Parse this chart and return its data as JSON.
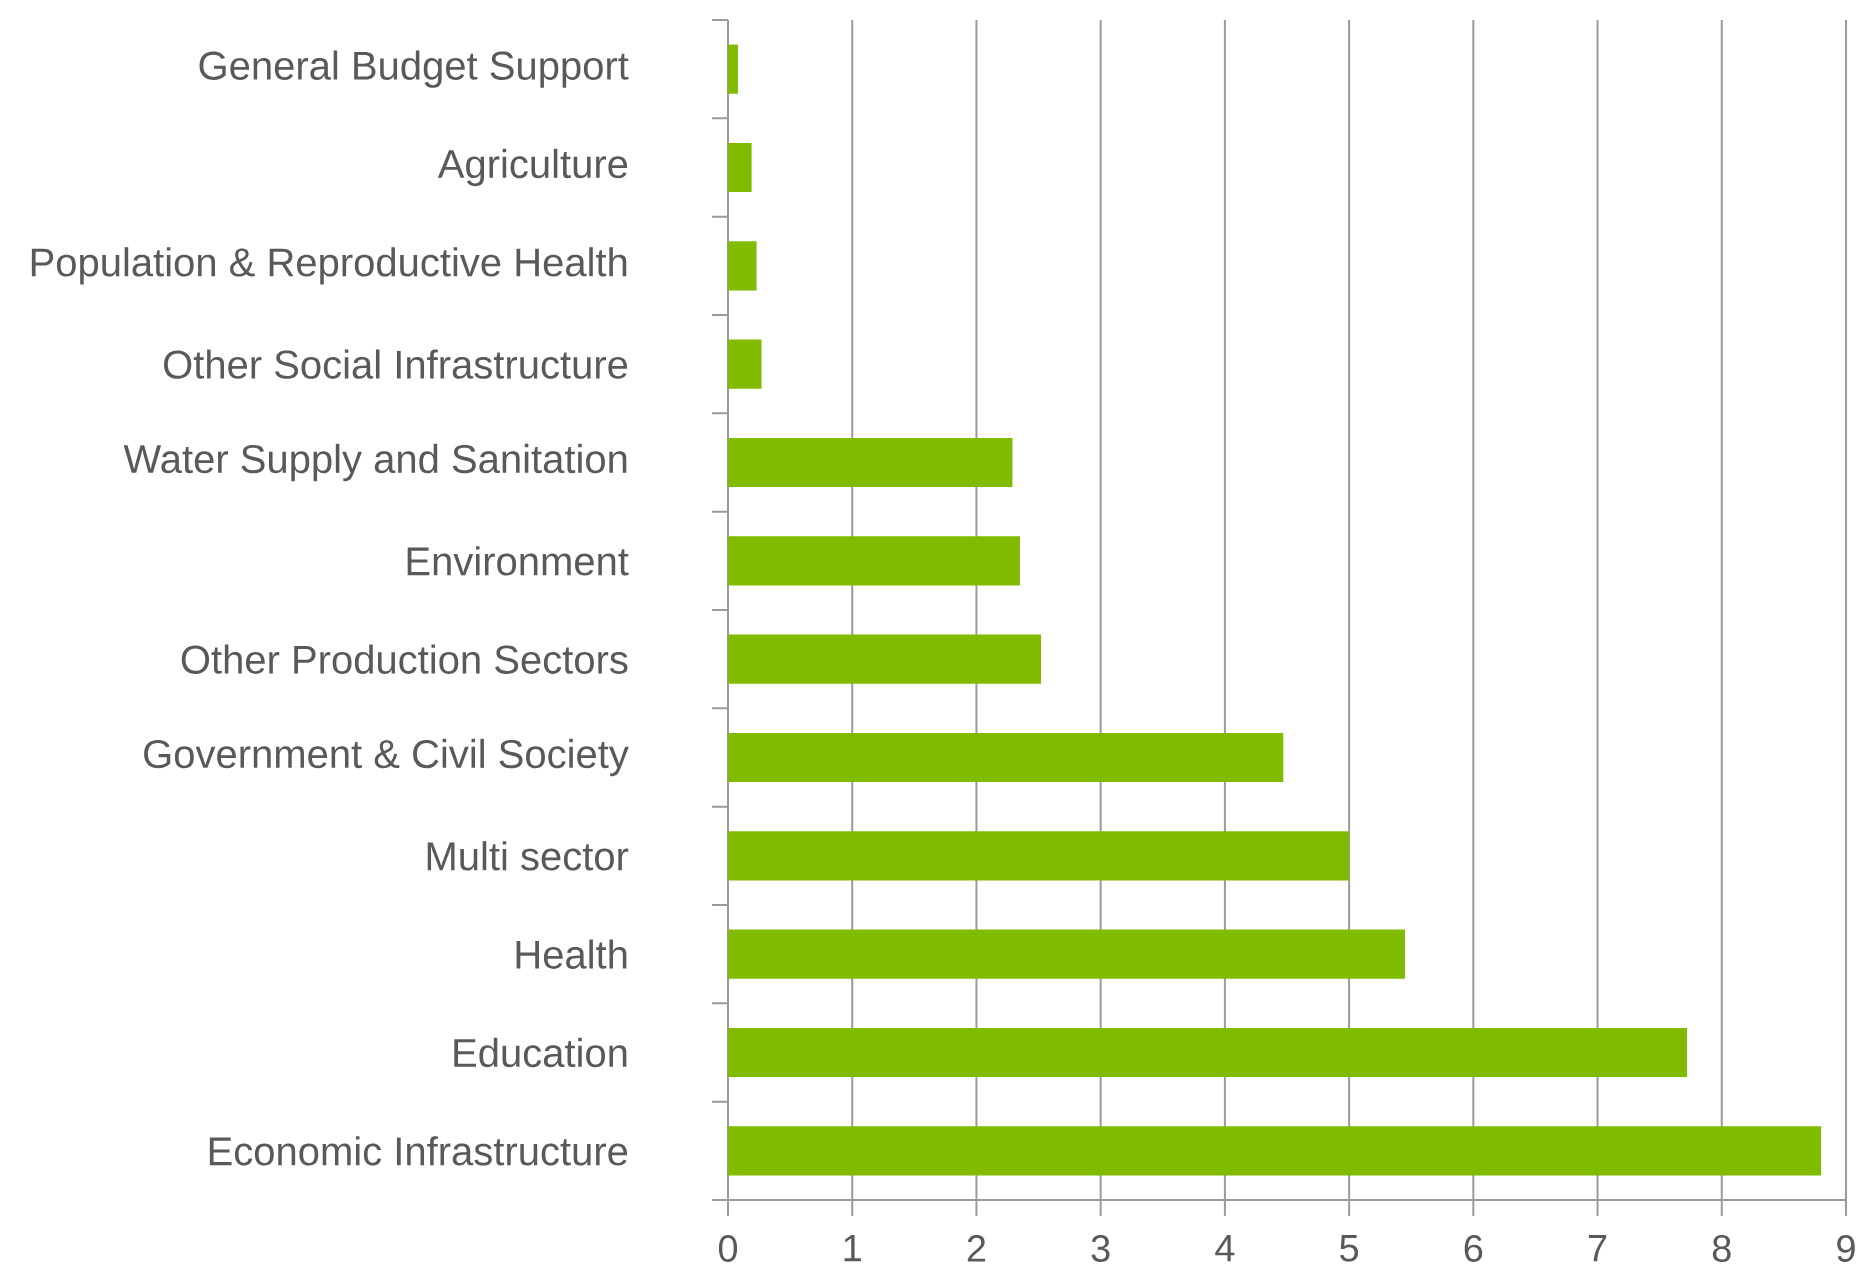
{
  "chart_data": {
    "type": "bar",
    "orientation": "horizontal",
    "categories": [
      "General Budget Support",
      "Agriculture",
      "Population & Reproductive Health",
      "Other Social Infrastructure",
      "Water Supply and Sanitation",
      "Environment",
      "Other Production Sectors",
      "Government & Civil Society",
      "Multi sector",
      "Health",
      "Education",
      "Economic Infrastructure"
    ],
    "values": [
      0.08,
      0.19,
      0.23,
      0.27,
      2.29,
      2.35,
      2.52,
      4.47,
      5.0,
      5.45,
      7.72,
      8.8
    ],
    "color": "#80bb00",
    "xlim": [
      0,
      9
    ],
    "xticks": [
      0,
      1,
      2,
      3,
      4,
      5,
      6,
      7,
      8,
      9
    ],
    "grid": "x"
  }
}
